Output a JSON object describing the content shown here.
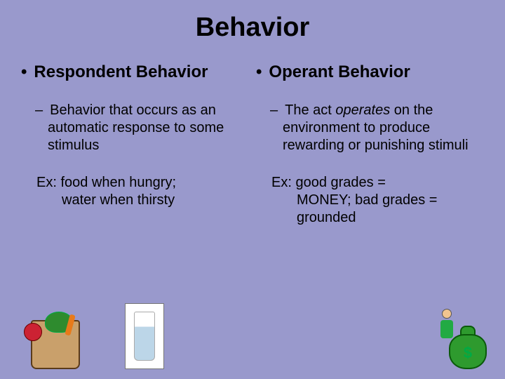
{
  "colors": {
    "background": "#9999cc",
    "text": "#000000"
  },
  "typography": {
    "title_fontsize": 38,
    "heading_fontsize": 24,
    "body_fontsize": 20,
    "font_family": "Arial"
  },
  "title": "Behavior",
  "left": {
    "heading": "Respondent Behavior",
    "sub": "Behavior that occurs as an automatic response to some stimulus",
    "example_lead": "Ex: food when hungry;",
    "example_rest": "water when thirsty"
  },
  "right": {
    "heading": "Operant Behavior",
    "sub_pre": "The act ",
    "sub_italic": "operates",
    "sub_post": " on the environment to produce rewarding or punishing stimuli",
    "example_lead": "Ex: good grades =",
    "example_rest": "MONEY; bad grades = grounded"
  },
  "illustrations": {
    "left_a": "grocery-bag",
    "left_b": "glass-of-water",
    "right": "money-bag-with-person"
  }
}
